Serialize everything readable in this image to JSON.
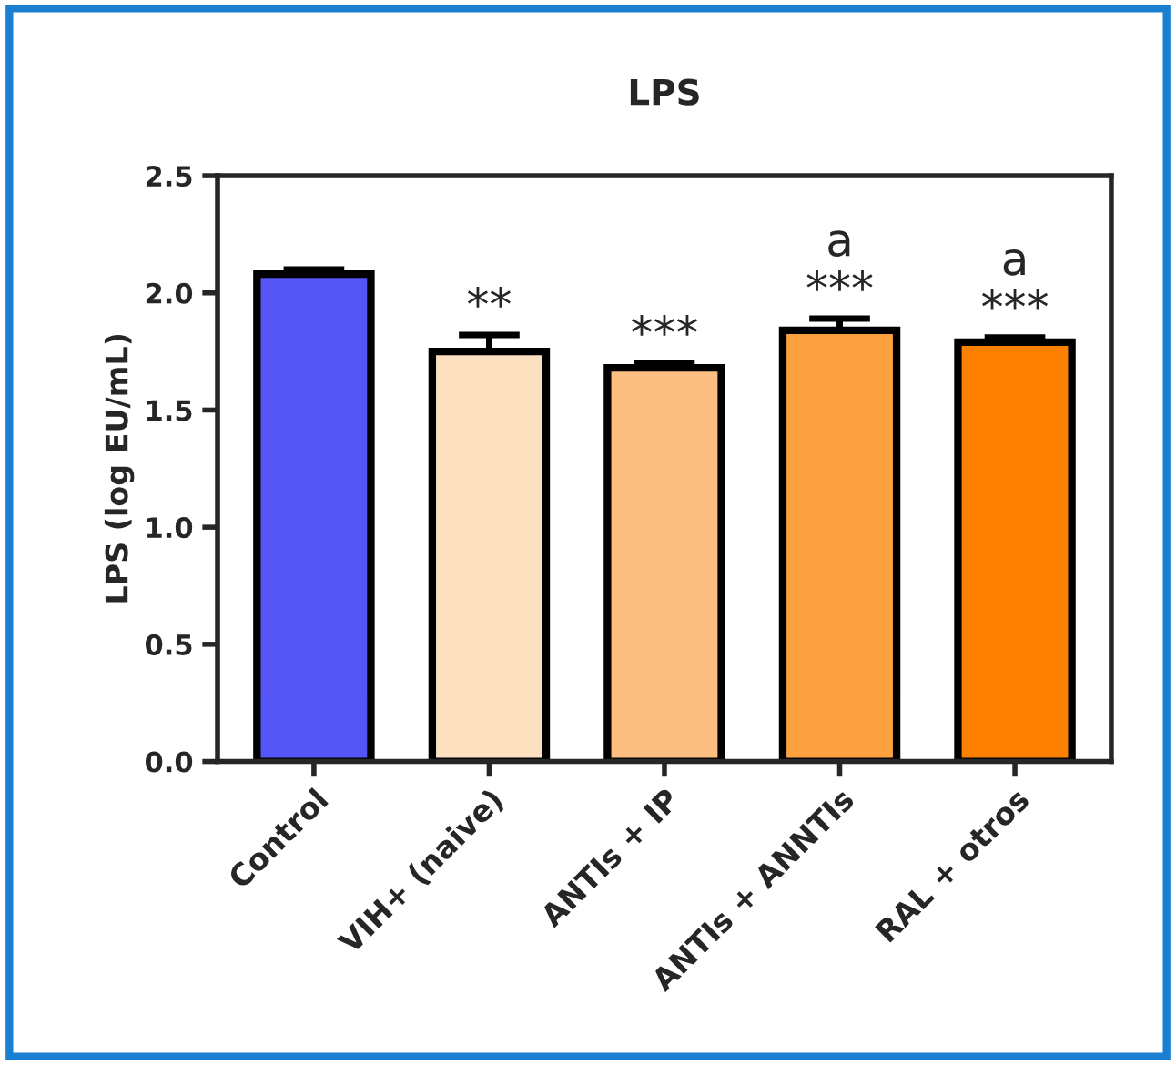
{
  "chart_data": {
    "type": "bar",
    "title": "LPS",
    "ylabel": "LPS (log EU/mL)",
    "categories": [
      "Control",
      "VIH+ (naive)",
      "ANTIs + IP",
      "ANTIs + ANNTIs",
      "RAL + otros"
    ],
    "values": [
      2.08,
      1.75,
      1.68,
      1.84,
      1.79
    ],
    "errors": [
      0.02,
      0.07,
      0.02,
      0.05,
      0.02
    ],
    "colors": [
      "#5555f5",
      "#fde0c0",
      "#fdbf80",
      "#fda040",
      "#fd8000"
    ],
    "ylim": [
      0,
      2.5
    ],
    "yticks": [
      {
        "value": 0,
        "label": "0.0"
      },
      {
        "value": 0.5,
        "label": "0.5"
      },
      {
        "value": 1,
        "label": "1.0"
      },
      {
        "value": 1.5,
        "label": "1.5"
      },
      {
        "value": 2,
        "label": "2.0"
      },
      {
        "value": 2.5,
        "label": "2.5"
      }
    ],
    "grid": false,
    "annotations": [
      {
        "text": "**",
        "x": "VIH+ (naive)",
        "y": 1.75
      },
      {
        "text": "***",
        "x": "ANTIs + IP",
        "y": 1.68
      },
      {
        "text": "***",
        "x": "ANTIs + ANNTIs",
        "y": 1.84
      },
      {
        "text": "a",
        "x": "ANTIs + ANNTIs",
        "y": 1.84
      },
      {
        "text": "***",
        "x": "RAL + otros",
        "y": 1.79
      },
      {
        "text": "a",
        "x": "RAL + otros",
        "y": 1.79
      }
    ]
  }
}
